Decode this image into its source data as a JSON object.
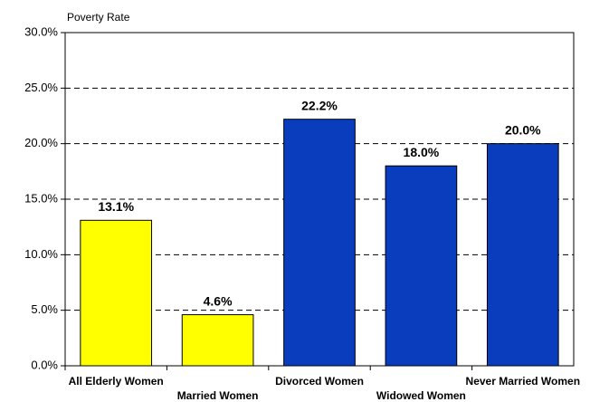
{
  "chart_data": {
    "type": "bar",
    "y_axis_label": "Poverty Rate",
    "categories": [
      "All Elderly Women",
      "Married Women",
      "Divorced Women",
      "Widowed Women",
      "Never Married Women"
    ],
    "values": [
      13.1,
      4.6,
      22.2,
      18.0,
      20.0
    ],
    "value_labels": [
      "13.1%",
      "4.6%",
      "22.2%",
      "18.0%",
      "20.0%"
    ],
    "colors": [
      "#ffff00",
      "#ffff00",
      "#0a3cbe",
      "#0a3cbe",
      "#0a3cbe"
    ],
    "ylim": [
      0,
      30
    ],
    "yticks": [
      {
        "value": 0,
        "label": "0.0%"
      },
      {
        "value": 5,
        "label": "5.0%"
      },
      {
        "value": 10,
        "label": "10.0%"
      },
      {
        "value": 15,
        "label": "15.0%"
      },
      {
        "value": 20,
        "label": "20.0%"
      },
      {
        "value": 25,
        "label": "25.0%"
      },
      {
        "value": 30,
        "label": "30.0%"
      }
    ],
    "grid": true
  }
}
